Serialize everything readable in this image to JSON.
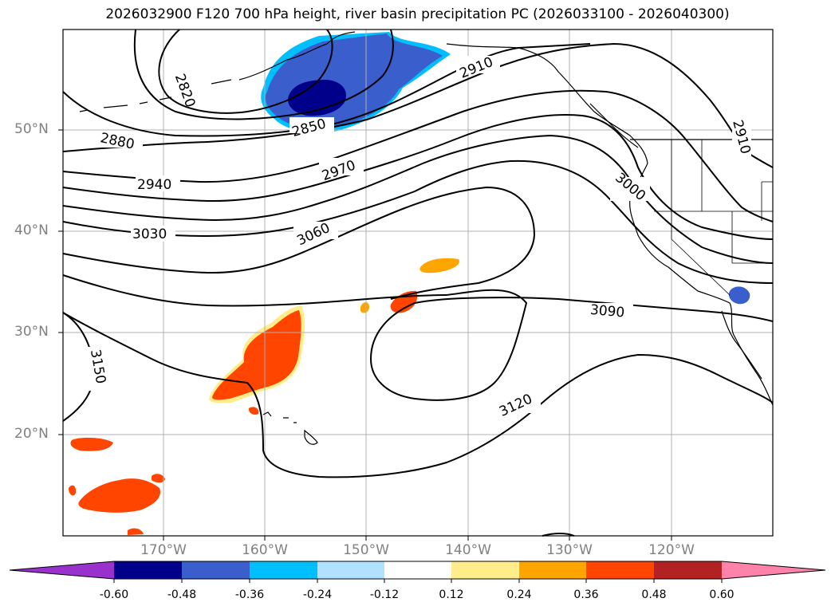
{
  "title": "2026032900 F120 700 hPa height, river basin precipitation PC (2026033100 - 2026040300)",
  "lat_labels": [
    "50°N",
    "40°N",
    "30°N",
    "20°N"
  ],
  "lon_labels": [
    "170°W",
    "160°W",
    "150°W",
    "140°W",
    "130°W",
    "120°W"
  ],
  "contour_labels": [
    "2820",
    "2850",
    "2880",
    "2910",
    "2910",
    "2940",
    "2970",
    "3000",
    "3030",
    "3060",
    "3090",
    "3120",
    "3150"
  ],
  "colorbar": {
    "ticks": [
      "-0.60",
      "-0.48",
      "-0.36",
      "-0.24",
      "-0.12",
      "0.12",
      "0.24",
      "0.36",
      "0.48",
      "0.60"
    ],
    "colors": [
      "#9932cc",
      "#00008b",
      "#3a5fcd",
      "#00bfff",
      "#b0e2ff",
      "#ffffff",
      "#ffec8b",
      "#ffa500",
      "#ff4500",
      "#b22222",
      "#ff82ab"
    ]
  }
}
